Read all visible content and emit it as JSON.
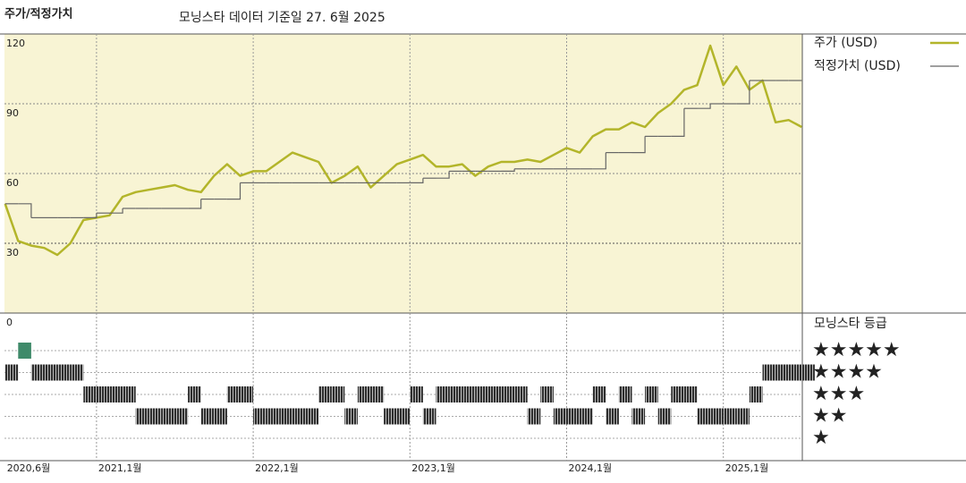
{
  "chart_data": {
    "type": "line",
    "title": "주가/적정가치",
    "subtitle": "모닝스타 데이터 기준일 27. 6월 2025",
    "x": [
      "2020-06",
      "2020-07",
      "2020-08",
      "2020-09",
      "2020-10",
      "2020-11",
      "2020-12",
      "2021-01",
      "2021-02",
      "2021-03",
      "2021-04",
      "2021-05",
      "2021-06",
      "2021-07",
      "2021-08",
      "2021-09",
      "2021-10",
      "2021-11",
      "2021-12",
      "2022-01",
      "2022-02",
      "2022-03",
      "2022-04",
      "2022-05",
      "2022-06",
      "2022-07",
      "2022-08",
      "2022-09",
      "2022-10",
      "2022-11",
      "2022-12",
      "2023-01",
      "2023-02",
      "2023-03",
      "2023-04",
      "2023-05",
      "2023-06",
      "2023-07",
      "2023-08",
      "2023-09",
      "2023-10",
      "2023-11",
      "2023-12",
      "2024-01",
      "2024-02",
      "2024-03",
      "2024-04",
      "2024-05",
      "2024-06",
      "2024-07",
      "2024-08",
      "2024-09",
      "2024-10",
      "2024-11",
      "2024-12",
      "2025-01",
      "2025-02",
      "2025-03",
      "2025-04",
      "2025-05",
      "2025-06",
      "2025-07"
    ],
    "series": [
      {
        "name": "주가 (USD)",
        "color": "#b3b52a",
        "style": "line",
        "values": [
          47,
          31,
          29,
          28,
          25,
          30,
          40,
          41,
          42,
          50,
          52,
          53,
          54,
          55,
          53,
          52,
          59,
          64,
          59,
          61,
          61,
          65,
          69,
          67,
          65,
          56,
          59,
          63,
          54,
          59,
          64,
          66,
          68,
          63,
          63,
          64,
          59,
          63,
          65,
          65,
          66,
          65,
          68,
          71,
          69,
          76,
          79,
          79,
          82,
          80,
          86,
          90,
          96,
          98,
          115,
          98,
          106,
          96,
          100,
          82,
          83,
          80
        ]
      },
      {
        "name": "적정가치 (USD)",
        "color": "#666666",
        "style": "step",
        "values": [
          47,
          47,
          41,
          41,
          41,
          41,
          41,
          43,
          43,
          45,
          45,
          45,
          45,
          45,
          45,
          49,
          49,
          49,
          56,
          56,
          56,
          56,
          56,
          56,
          56,
          56,
          56,
          56,
          56,
          56,
          56,
          56,
          58,
          58,
          61,
          61,
          61,
          61,
          61,
          62,
          62,
          62,
          62,
          62,
          62,
          62,
          69,
          69,
          69,
          76,
          76,
          76,
          88,
          88,
          90,
          90,
          90,
          100,
          100,
          100,
          100,
          100
        ]
      }
    ],
    "xlim": [
      "2020-06",
      "2025-07"
    ],
    "xticks": [
      {
        "value": "2020-06",
        "label": "2020,6월"
      },
      {
        "value": "2021-01",
        "label": "2021,1월"
      },
      {
        "value": "2022-01",
        "label": "2022,1월"
      },
      {
        "value": "2023-01",
        "label": "2023,1월"
      },
      {
        "value": "2024-01",
        "label": "2024,1월"
      },
      {
        "value": "2025-01",
        "label": "2025,1월"
      }
    ],
    "ylim": [
      0,
      120
    ],
    "yticks": [
      0,
      30,
      60,
      90,
      120
    ],
    "grid": true,
    "background": "#f8f4d4",
    "ratings": {
      "title": "모닝스타 등급",
      "levels": [
        "★★★★★",
        "★★★★",
        "★★★",
        "★★",
        "★"
      ],
      "level_colors": [
        "#3f8a6a",
        "#2e2e2e",
        "#2e2e2e",
        "#2e2e2e",
        "#2e2e2e"
      ],
      "values": [
        4,
        5,
        4,
        4,
        4,
        4,
        3,
        3,
        3,
        3,
        2,
        2,
        2,
        2,
        3,
        2,
        2,
        3,
        3,
        2,
        2,
        2,
        2,
        2,
        3,
        3,
        2,
        3,
        3,
        2,
        2,
        3,
        2,
        3,
        3,
        3,
        3,
        3,
        3,
        3,
        2,
        3,
        2,
        2,
        2,
        3,
        2,
        3,
        2,
        3,
        2,
        3,
        3,
        2,
        2,
        2,
        2,
        3,
        4,
        4,
        4,
        4
      ]
    }
  }
}
